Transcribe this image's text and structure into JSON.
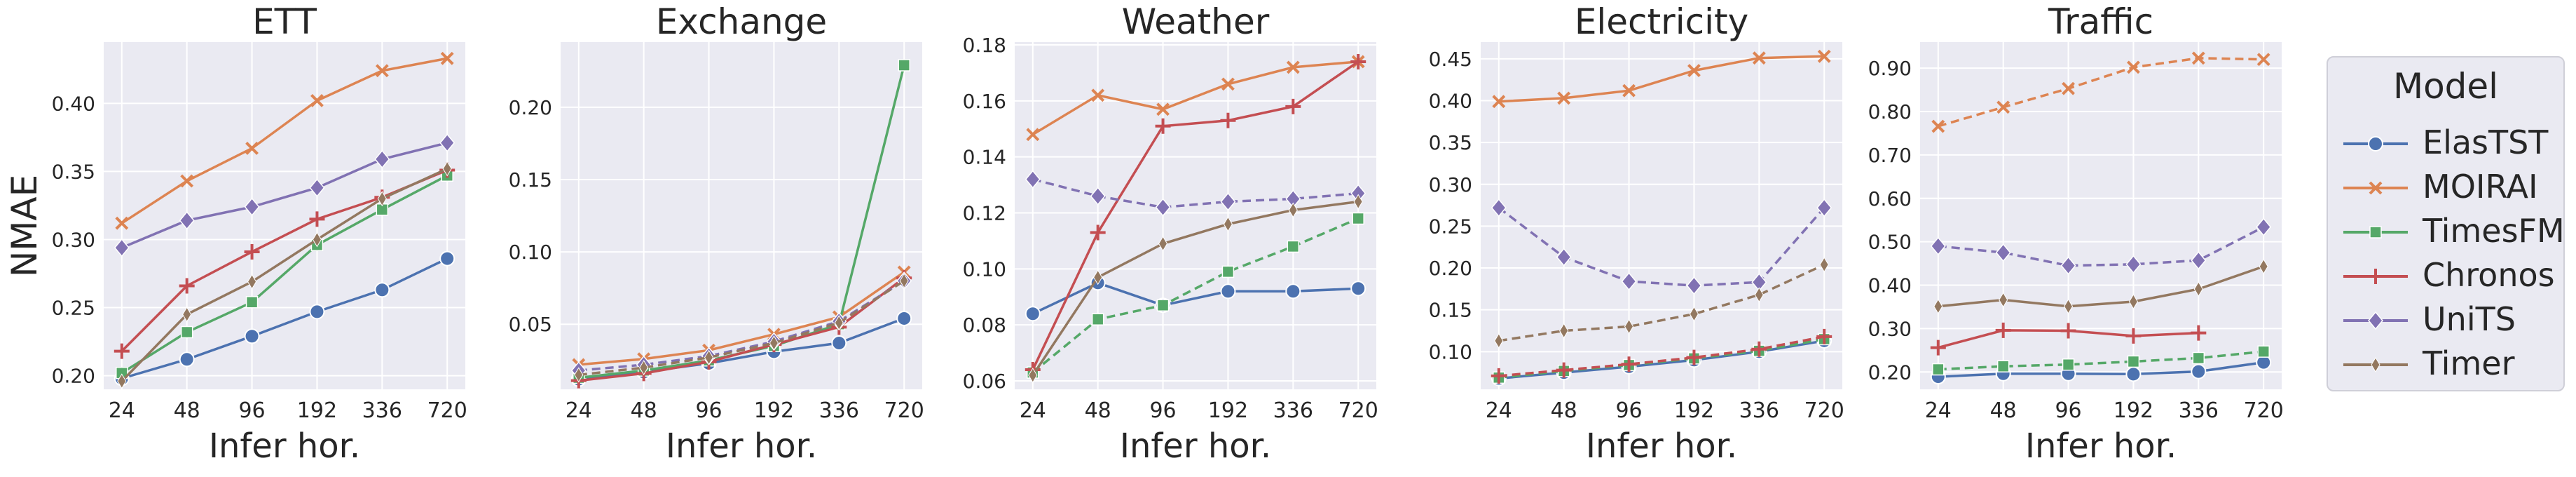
{
  "figure": {
    "ylabel": "NMAE"
  },
  "legend": {
    "title": "Model",
    "entries": [
      {
        "name": "ElasTST",
        "color": "#4c72b0",
        "marker": "circle"
      },
      {
        "name": "MOIRAI",
        "color": "#dd8452",
        "marker": "x"
      },
      {
        "name": "TimesFM",
        "color": "#55a868",
        "marker": "square"
      },
      {
        "name": "Chronos",
        "color": "#c44e52",
        "marker": "plus"
      },
      {
        "name": "UniTS",
        "color": "#8172b3",
        "marker": "diamond"
      },
      {
        "name": "Timer",
        "color": "#937860",
        "marker": "thin-diamond"
      }
    ]
  },
  "chart_data": [
    {
      "type": "line",
      "title": "ETT",
      "xlabel": "Infer hor.",
      "ylabel": "NMAE",
      "categories": [
        "24",
        "48",
        "96",
        "192",
        "336",
        "720"
      ],
      "ylim": [
        0.19,
        0.445
      ],
      "yticks": [
        "0.20",
        "0.25",
        "0.30",
        "0.35",
        "0.40"
      ],
      "ytick_values": [
        0.2,
        0.25,
        0.3,
        0.35,
        0.4
      ],
      "grid": true,
      "series": [
        {
          "name": "ElasTST",
          "values": [
            0.198,
            0.212,
            0.229,
            0.247,
            0.263,
            0.286
          ],
          "dashed": false
        },
        {
          "name": "MOIRAI",
          "values": [
            0.312,
            0.343,
            0.367,
            0.402,
            0.424,
            0.433
          ],
          "dashed": false
        },
        {
          "name": "TimesFM",
          "values": [
            0.202,
            0.232,
            0.254,
            0.296,
            0.322,
            0.347
          ],
          "dashed": false
        },
        {
          "name": "Chronos",
          "values": [
            0.218,
            0.266,
            0.291,
            0.315,
            0.331,
            0.351
          ],
          "dashed": false
        },
        {
          "name": "UniTS",
          "values": [
            0.294,
            0.314,
            0.324,
            0.338,
            0.359,
            0.371
          ],
          "dashed": false
        },
        {
          "name": "Timer",
          "values": [
            0.196,
            0.245,
            0.269,
            0.3,
            0.33,
            0.352
          ],
          "dashed": false
        }
      ]
    },
    {
      "type": "line",
      "title": "Exchange",
      "xlabel": "Infer hor.",
      "ylabel": "",
      "categories": [
        "24",
        "48",
        "96",
        "192",
        "336",
        "720"
      ],
      "ylim": [
        0.005,
        0.245
      ],
      "yticks": [
        "0.05",
        "0.10",
        "0.15",
        "0.20"
      ],
      "ytick_values": [
        0.05,
        0.1,
        0.15,
        0.2
      ],
      "grid": true,
      "series": [
        {
          "name": "ElasTST",
          "values": [
            0.012,
            0.017,
            0.023,
            0.031,
            0.037,
            0.054
          ],
          "dashed": false
        },
        {
          "name": "MOIRAI",
          "values": [
            0.022,
            0.026,
            0.032,
            0.043,
            0.055,
            0.086
          ],
          "dashed": false
        },
        {
          "name": "TimesFM",
          "values": [
            0.013,
            0.018,
            0.025,
            0.035,
            0.05,
            0.229
          ],
          "dashed": false
        },
        {
          "name": "Chronos",
          "values": [
            0.011,
            0.016,
            0.024,
            0.036,
            0.048,
            0.082
          ],
          "dashed": false
        },
        {
          "name": "UniTS",
          "values": [
            0.018,
            0.022,
            0.028,
            0.038,
            0.052,
            0.08
          ],
          "dashed": true
        },
        {
          "name": "Timer",
          "values": [
            0.015,
            0.02,
            0.027,
            0.037,
            0.051,
            0.08
          ],
          "dashed": true
        }
      ]
    },
    {
      "type": "line",
      "title": "Weather",
      "xlabel": "Infer hor.",
      "ylabel": "",
      "categories": [
        "24",
        "48",
        "96",
        "192",
        "336",
        "720"
      ],
      "ylim": [
        0.057,
        0.181
      ],
      "yticks": [
        "0.06",
        "0.08",
        "0.10",
        "0.12",
        "0.14",
        "0.16",
        "0.18"
      ],
      "ytick_values": [
        0.06,
        0.08,
        0.1,
        0.12,
        0.14,
        0.16,
        0.18
      ],
      "grid": true,
      "series": [
        {
          "name": "ElasTST",
          "values": [
            0.084,
            0.095,
            0.087,
            0.092,
            0.092,
            0.093
          ],
          "dashed": false
        },
        {
          "name": "MOIRAI",
          "values": [
            0.148,
            0.162,
            0.157,
            0.166,
            0.172,
            0.174
          ],
          "dashed": false
        },
        {
          "name": "TimesFM",
          "values": [
            0.063,
            0.082,
            0.087,
            0.099,
            0.108,
            0.118
          ],
          "dashed": true
        },
        {
          "name": "Chronos",
          "values": [
            0.064,
            0.113,
            0.151,
            0.153,
            0.158,
            0.174
          ],
          "dashed": false
        },
        {
          "name": "UniTS",
          "values": [
            0.132,
            0.126,
            0.122,
            0.124,
            0.125,
            0.127
          ],
          "dashed": true
        },
        {
          "name": "Timer",
          "values": [
            0.062,
            0.097,
            0.109,
            0.116,
            0.121,
            0.124
          ],
          "dashed": false
        }
      ]
    },
    {
      "type": "line",
      "title": "Electricity",
      "xlabel": "Infer hor.",
      "ylabel": "",
      "categories": [
        "24",
        "48",
        "96",
        "192",
        "336",
        "720"
      ],
      "ylim": [
        0.055,
        0.47
      ],
      "yticks": [
        "0.10",
        "0.15",
        "0.20",
        "0.25",
        "0.30",
        "0.35",
        "0.40",
        "0.45"
      ],
      "ytick_values": [
        0.1,
        0.15,
        0.2,
        0.25,
        0.3,
        0.35,
        0.4,
        0.45
      ],
      "grid": true,
      "series": [
        {
          "name": "ElasTST",
          "values": [
            0.068,
            0.075,
            0.082,
            0.09,
            0.1,
            0.113
          ],
          "dashed": false
        },
        {
          "name": "MOIRAI",
          "values": [
            0.399,
            0.403,
            0.412,
            0.436,
            0.451,
            0.453
          ],
          "dashed": false
        },
        {
          "name": "TimesFM",
          "values": [
            0.069,
            0.077,
            0.084,
            0.092,
            0.101,
            0.115
          ],
          "dashed": true
        },
        {
          "name": "Chronos",
          "values": [
            0.071,
            0.078,
            0.085,
            0.093,
            0.103,
            0.118
          ],
          "dashed": true
        },
        {
          "name": "UniTS",
          "values": [
            0.272,
            0.213,
            0.184,
            0.179,
            0.183,
            0.272
          ],
          "dashed": true
        },
        {
          "name": "Timer",
          "values": [
            0.113,
            0.125,
            0.13,
            0.145,
            0.168,
            0.204
          ],
          "dashed": true
        }
      ]
    },
    {
      "type": "line",
      "title": "Traffic",
      "xlabel": "Infer hor.",
      "ylabel": "",
      "categories": [
        "24",
        "48",
        "96",
        "192",
        "336",
        "720"
      ],
      "ylim": [
        0.16,
        0.96
      ],
      "yticks": [
        "0.20",
        "0.30",
        "0.40",
        "0.50",
        "0.60",
        "0.70",
        "0.80",
        "0.90"
      ],
      "ytick_values": [
        0.2,
        0.3,
        0.4,
        0.5,
        0.6,
        0.7,
        0.8,
        0.9
      ],
      "grid": true,
      "series": [
        {
          "name": "ElasTST",
          "values": [
            0.189,
            0.196,
            0.196,
            0.195,
            0.201,
            0.222
          ],
          "dashed": false
        },
        {
          "name": "MOIRAI",
          "values": [
            0.766,
            0.81,
            0.853,
            0.902,
            0.923,
            0.92
          ],
          "dashed": true
        },
        {
          "name": "TimesFM",
          "values": [
            0.206,
            0.213,
            0.217,
            0.224,
            0.232,
            0.247
          ],
          "dashed": true
        },
        {
          "name": "Chronos",
          "values": [
            0.256,
            0.296,
            0.295,
            0.283,
            0.29,
            null
          ],
          "dashed": false
        },
        {
          "name": "UniTS",
          "values": [
            0.49,
            0.475,
            0.445,
            0.448,
            0.457,
            0.534
          ],
          "dashed": true
        },
        {
          "name": "Timer",
          "values": [
            0.351,
            0.366,
            0.351,
            0.362,
            0.391,
            0.443
          ],
          "dashed": false
        }
      ]
    }
  ]
}
